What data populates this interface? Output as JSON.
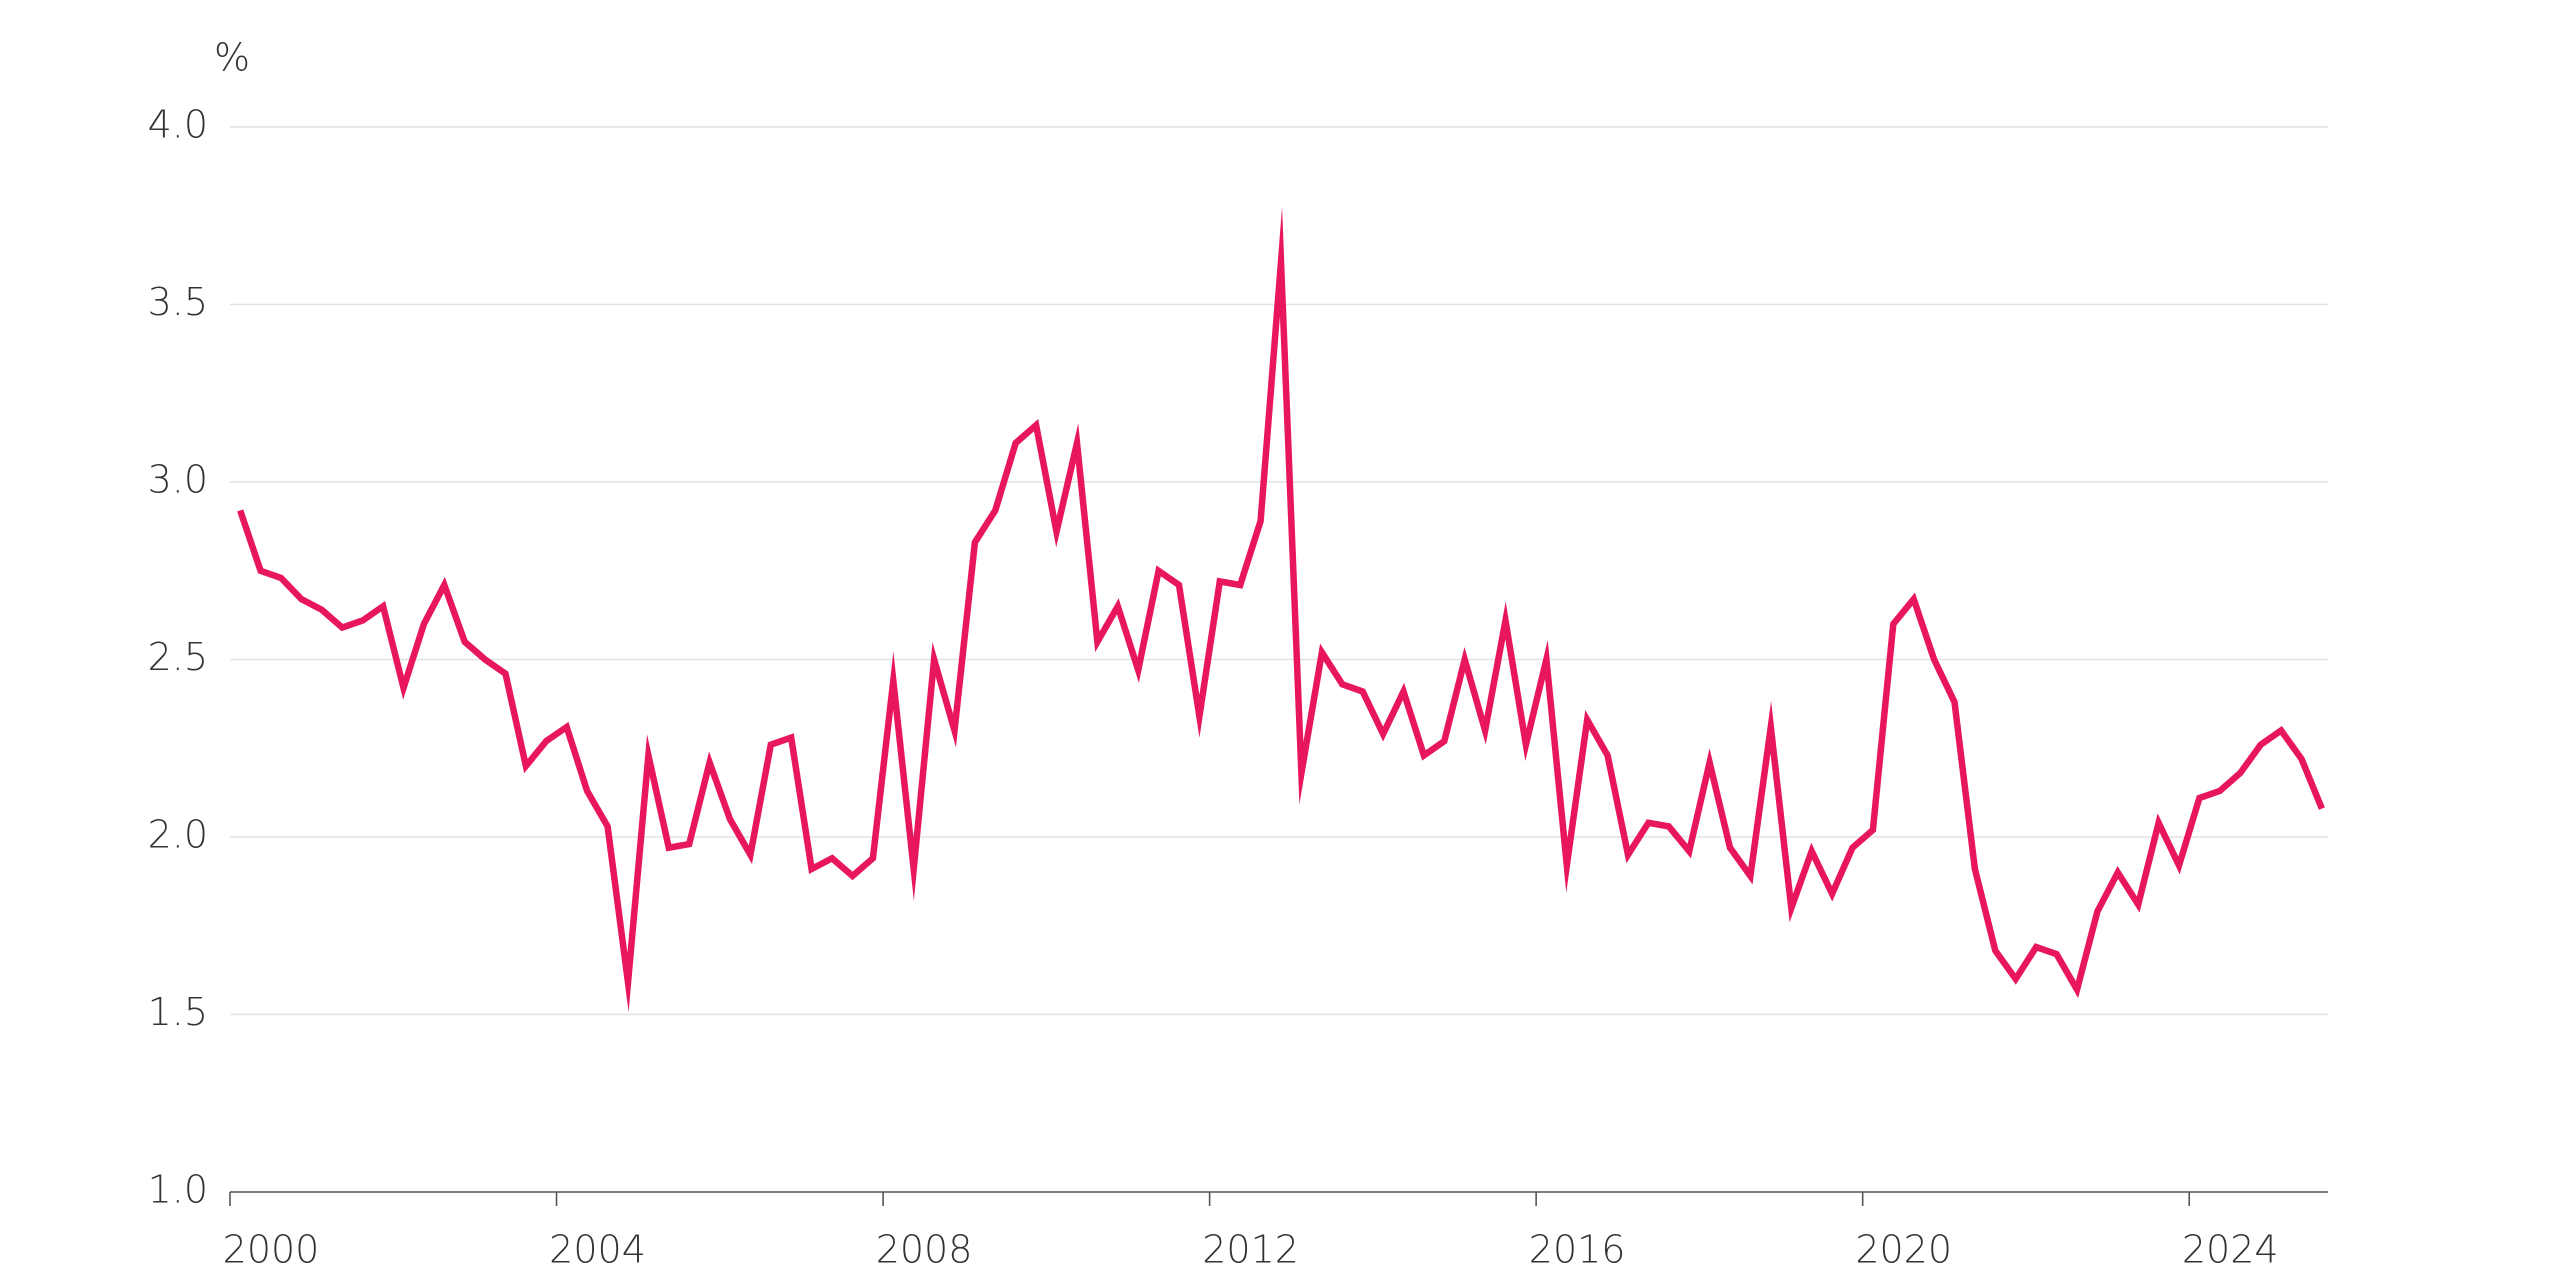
{
  "chart_data": {
    "type": "line",
    "ylabel": "%",
    "color": "#e8175d",
    "x": [
      2000.125,
      2000.375,
      2000.625,
      2000.875,
      2001.125,
      2001.375,
      2001.625,
      2001.875,
      2002.125,
      2002.375,
      2002.625,
      2002.875,
      2003.125,
      2003.375,
      2003.625,
      2003.875,
      2004.125,
      2004.375,
      2004.625,
      2004.875,
      2005.125,
      2005.375,
      2005.625,
      2005.875,
      2006.125,
      2006.375,
      2006.625,
      2006.875,
      2007.125,
      2007.375,
      2007.625,
      2007.875,
      2008.125,
      2008.375,
      2008.625,
      2008.875,
      2009.125,
      2009.375,
      2009.625,
      2009.875,
      2010.125,
      2010.375,
      2010.625,
      2010.875,
      2011.125,
      2011.375,
      2011.625,
      2011.875,
      2012.125,
      2012.375,
      2012.625,
      2012.875,
      2013.125,
      2013.375,
      2013.625,
      2013.875,
      2014.125,
      2014.375,
      2014.625,
      2014.875,
      2015.125,
      2015.375,
      2015.625,
      2015.875,
      2016.125,
      2016.375,
      2016.625,
      2016.875,
      2017.125,
      2017.375,
      2017.625,
      2017.875,
      2018.125,
      2018.375,
      2018.625,
      2018.875,
      2019.125,
      2019.375,
      2019.625,
      2019.875,
      2020.125,
      2020.375,
      2020.625,
      2020.875,
      2021.125,
      2021.375,
      2021.625,
      2021.875,
      2022.125,
      2022.375,
      2022.625,
      2022.875,
      2023.125,
      2023.375,
      2023.625,
      2023.875,
      2024.125,
      2024.375,
      2024.625,
      2024.875,
      2025.125,
      2025.375,
      2025.625
    ],
    "values": [
      2.92,
      2.75,
      2.73,
      2.67,
      2.64,
      2.59,
      2.61,
      2.65,
      2.42,
      2.6,
      2.71,
      2.55,
      2.5,
      2.46,
      2.2,
      2.27,
      2.31,
      2.13,
      2.03,
      1.59,
      2.23,
      1.97,
      1.98,
      2.21,
      2.05,
      1.95,
      2.26,
      2.28,
      1.91,
      1.94,
      1.89,
      1.94,
      2.44,
      1.91,
      2.5,
      2.3,
      2.83,
      2.92,
      3.11,
      3.16,
      2.86,
      3.11,
      2.55,
      2.65,
      2.47,
      2.75,
      2.71,
      2.34,
      2.72,
      2.71,
      2.89,
      3.62,
      2.18,
      2.52,
      2.43,
      2.41,
      2.29,
      2.41,
      2.23,
      2.27,
      2.5,
      2.3,
      2.61,
      2.26,
      2.5,
      1.92,
      2.33,
      2.23,
      1.95,
      2.04,
      2.03,
      1.96,
      2.21,
      1.97,
      1.89,
      2.31,
      1.8,
      1.96,
      1.84,
      1.97,
      2.02,
      2.6,
      2.67,
      2.5,
      2.38,
      1.91,
      1.68,
      1.6,
      1.69,
      1.67,
      1.57,
      1.79,
      1.9,
      1.81,
      2.04,
      1.92,
      2.11,
      2.13,
      2.18,
      2.26,
      2.3,
      2.22,
      2.08
    ],
    "xlim": [
      2000,
      2025.7
    ],
    "xticks": [
      2000,
      2004,
      2008,
      2012,
      2016,
      2020,
      2024
    ],
    "ylim": [
      1,
      4
    ],
    "yticks": [
      {
        "value": 1,
        "label": "1.0"
      },
      1.5,
      {
        "value": 2,
        "label": "2.0"
      },
      2.5,
      {
        "value": 3,
        "label": "3.0"
      },
      3.5,
      {
        "value": 4,
        "label": "4.0"
      }
    ],
    "grid": true
  }
}
